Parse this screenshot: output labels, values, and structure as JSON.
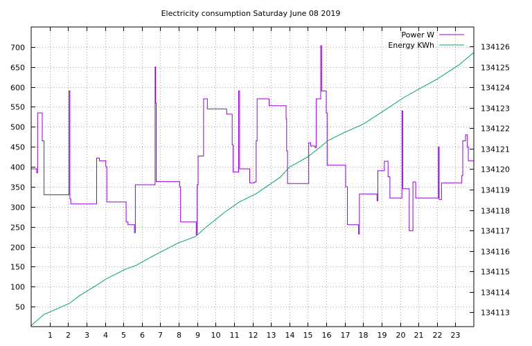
{
  "chart_data": {
    "type": "line",
    "title": "Electricity consumption Saturday June 08 2019",
    "xlabel": "",
    "ylabel": "",
    "y2label": "",
    "grid": true,
    "legend_position": "top-right",
    "x_range": [
      0,
      24
    ],
    "x_ticks": [
      1,
      2,
      3,
      4,
      5,
      6,
      7,
      8,
      9,
      10,
      11,
      12,
      13,
      14,
      15,
      16,
      17,
      18,
      19,
      20,
      21,
      22,
      23
    ],
    "y_range": [
      0,
      750
    ],
    "y_ticks": [
      50,
      100,
      150,
      200,
      250,
      300,
      350,
      400,
      450,
      500,
      550,
      600,
      650,
      700
    ],
    "y2_range": [
      134112.3,
      134126.95
    ],
    "y2_ticks": [
      134113,
      134114,
      134115,
      134116,
      134117,
      134118,
      134119,
      134120,
      134121,
      134122,
      134123,
      134124,
      134125,
      134126
    ],
    "series": [
      {
        "name": "Power W",
        "axis": "left",
        "color": "#9400d3",
        "step": true,
        "points": [
          [
            0.0,
            395
          ],
          [
            0.3,
            385
          ],
          [
            0.35,
            535
          ],
          [
            0.6,
            465
          ],
          [
            0.7,
            330
          ],
          [
            2.0,
            330
          ],
          [
            2.05,
            590
          ],
          [
            2.1,
            320
          ],
          [
            2.15,
            307
          ],
          [
            3.5,
            307
          ],
          [
            3.55,
            422
          ],
          [
            3.7,
            415
          ],
          [
            4.05,
            400
          ],
          [
            4.1,
            312
          ],
          [
            5.1,
            312
          ],
          [
            5.15,
            262
          ],
          [
            5.25,
            255
          ],
          [
            5.6,
            235
          ],
          [
            5.65,
            355
          ],
          [
            6.7,
            355
          ],
          [
            6.72,
            650
          ],
          [
            6.75,
            560
          ],
          [
            6.78,
            363
          ],
          [
            8.0,
            363
          ],
          [
            8.05,
            350
          ],
          [
            8.1,
            262
          ],
          [
            8.9,
            262
          ],
          [
            8.95,
            230
          ],
          [
            9.0,
            355
          ],
          [
            9.05,
            427
          ],
          [
            9.3,
            427
          ],
          [
            9.35,
            570
          ],
          [
            9.55,
            545
          ],
          [
            10.55,
            545
          ],
          [
            10.6,
            532
          ],
          [
            10.9,
            455
          ],
          [
            10.95,
            387
          ],
          [
            11.2,
            387
          ],
          [
            11.25,
            590
          ],
          [
            11.3,
            395
          ],
          [
            11.8,
            395
          ],
          [
            11.85,
            360
          ],
          [
            12.1,
            362
          ],
          [
            12.2,
            465
          ],
          [
            12.25,
            570
          ],
          [
            12.85,
            570
          ],
          [
            12.9,
            553
          ],
          [
            13.8,
            553
          ],
          [
            13.82,
            520
          ],
          [
            13.85,
            440
          ],
          [
            13.9,
            358
          ],
          [
            15.0,
            358
          ],
          [
            15.05,
            460
          ],
          [
            15.15,
            452
          ],
          [
            15.4,
            448
          ],
          [
            15.45,
            570
          ],
          [
            15.7,
            703
          ],
          [
            15.75,
            590
          ],
          [
            16.0,
            535
          ],
          [
            16.05,
            404
          ],
          [
            17.0,
            404
          ],
          [
            17.05,
            350
          ],
          [
            17.15,
            255
          ],
          [
            17.7,
            255
          ],
          [
            17.75,
            232
          ],
          [
            17.8,
            332
          ],
          [
            18.7,
            332
          ],
          [
            18.75,
            315
          ],
          [
            18.8,
            390
          ],
          [
            19.1,
            390
          ],
          [
            19.15,
            414
          ],
          [
            19.35,
            375
          ],
          [
            19.45,
            322
          ],
          [
            20.05,
            322
          ],
          [
            20.1,
            540
          ],
          [
            20.15,
            345
          ],
          [
            20.45,
            345
          ],
          [
            20.5,
            240
          ],
          [
            20.65,
            240
          ],
          [
            20.7,
            362
          ],
          [
            20.8,
            362
          ],
          [
            20.85,
            322
          ],
          [
            22.05,
            322
          ],
          [
            22.08,
            450
          ],
          [
            22.12,
            318
          ],
          [
            22.2,
            318
          ],
          [
            22.25,
            360
          ],
          [
            23.3,
            360
          ],
          [
            23.35,
            378
          ],
          [
            23.4,
            465
          ],
          [
            23.55,
            480
          ],
          [
            23.65,
            450
          ],
          [
            23.7,
            415
          ],
          [
            24.0,
            415
          ]
        ]
      },
      {
        "name": "Energy KWh",
        "axis": "right",
        "color": "#009e73",
        "step": false,
        "points": [
          [
            0.0,
            134112.35
          ],
          [
            0.7,
            134112.9
          ],
          [
            1.6,
            134113.25
          ],
          [
            2.1,
            134113.45
          ],
          [
            2.6,
            134113.8
          ],
          [
            3.5,
            134114.3
          ],
          [
            4.1,
            134114.65
          ],
          [
            5.1,
            134115.1
          ],
          [
            5.7,
            134115.3
          ],
          [
            6.7,
            134115.8
          ],
          [
            8.0,
            134116.4
          ],
          [
            8.9,
            134116.7
          ],
          [
            9.4,
            134117.1
          ],
          [
            10.5,
            134117.9
          ],
          [
            11.3,
            134118.4
          ],
          [
            12.2,
            134118.8
          ],
          [
            13.5,
            134119.6
          ],
          [
            14.0,
            134120.1
          ],
          [
            15.0,
            134120.6
          ],
          [
            15.7,
            134121.1
          ],
          [
            16.1,
            134121.4
          ],
          [
            17.0,
            134121.8
          ],
          [
            18.0,
            134122.2
          ],
          [
            19.2,
            134122.9
          ],
          [
            20.2,
            134123.5
          ],
          [
            21.0,
            134123.9
          ],
          [
            22.0,
            134124.4
          ],
          [
            23.2,
            134125.1
          ],
          [
            24.0,
            134125.7
          ]
        ]
      }
    ]
  }
}
